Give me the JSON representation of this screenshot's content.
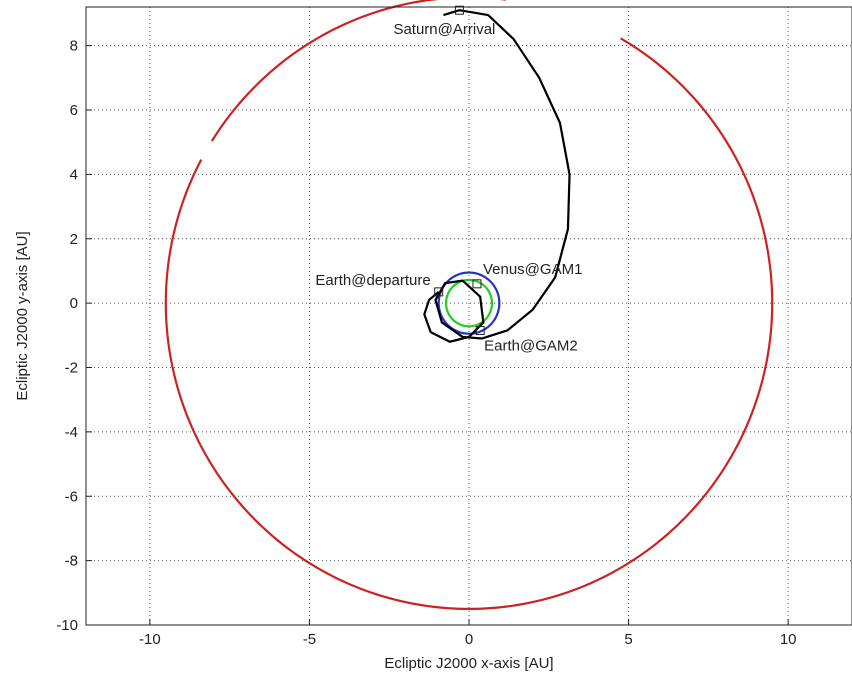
{
  "chart_data": {
    "type": "line",
    "title": "",
    "xlabel": "Ecliptic J2000 x-axis [AU]",
    "ylabel": "Ecliptic J2000 y-axis [AU]",
    "xlim": [
      -12,
      12
    ],
    "ylim": [
      -10,
      9.2
    ],
    "xticks": [
      -10,
      -5,
      0,
      5,
      10
    ],
    "yticks": [
      -10,
      -8,
      -6,
      -4,
      -2,
      0,
      2,
      4,
      6,
      8
    ],
    "grid": true,
    "series": [
      {
        "color": "#cc2222",
        "kind": "circle",
        "center": [
          0,
          0
        ],
        "radius": 9.5,
        "gap_degrees": [
          [
            60,
            83
          ],
          [
            148,
            152
          ]
        ]
      },
      {
        "color": "#2233cc",
        "kind": "circle",
        "center": [
          0,
          0
        ],
        "radius": 0.95
      },
      {
        "color": "#22cc22",
        "kind": "circle",
        "center": [
          0,
          0
        ],
        "radius": 0.72
      },
      {
        "color": "#000000",
        "kind": "trajectory",
        "points": [
          [
            -0.95,
            0.35
          ],
          [
            -1.25,
            0.1
          ],
          [
            -1.4,
            -0.35
          ],
          [
            -1.2,
            -0.9
          ],
          [
            -0.6,
            -1.2
          ],
          [
            0.0,
            -1.05
          ],
          [
            0.45,
            -0.6
          ],
          [
            0.35,
            0.2
          ],
          [
            -0.2,
            0.7
          ],
          [
            -0.75,
            0.62
          ],
          [
            -1.05,
            0.1
          ],
          [
            -0.85,
            -0.6
          ],
          [
            -0.2,
            -1.05
          ],
          [
            0.4,
            -1.1
          ],
          [
            1.2,
            -0.85
          ],
          [
            2.0,
            -0.2
          ],
          [
            2.7,
            0.8
          ],
          [
            3.1,
            2.3
          ],
          [
            3.15,
            4.0
          ],
          [
            2.85,
            5.6
          ],
          [
            2.2,
            7.0
          ],
          [
            1.4,
            8.2
          ],
          [
            0.6,
            8.95
          ],
          [
            -0.3,
            9.1
          ],
          [
            -0.8,
            8.95
          ]
        ]
      }
    ],
    "markers": [
      {
        "x": -0.95,
        "y": 0.35,
        "label": "Earth@departure"
      },
      {
        "x": 0.25,
        "y": 0.6,
        "label": "Venus@GAM1"
      },
      {
        "x": 0.35,
        "y": -0.85,
        "label": "Earth@GAM2"
      },
      {
        "x": -0.3,
        "y": 9.1,
        "label": "Saturn@Arrival"
      }
    ]
  }
}
